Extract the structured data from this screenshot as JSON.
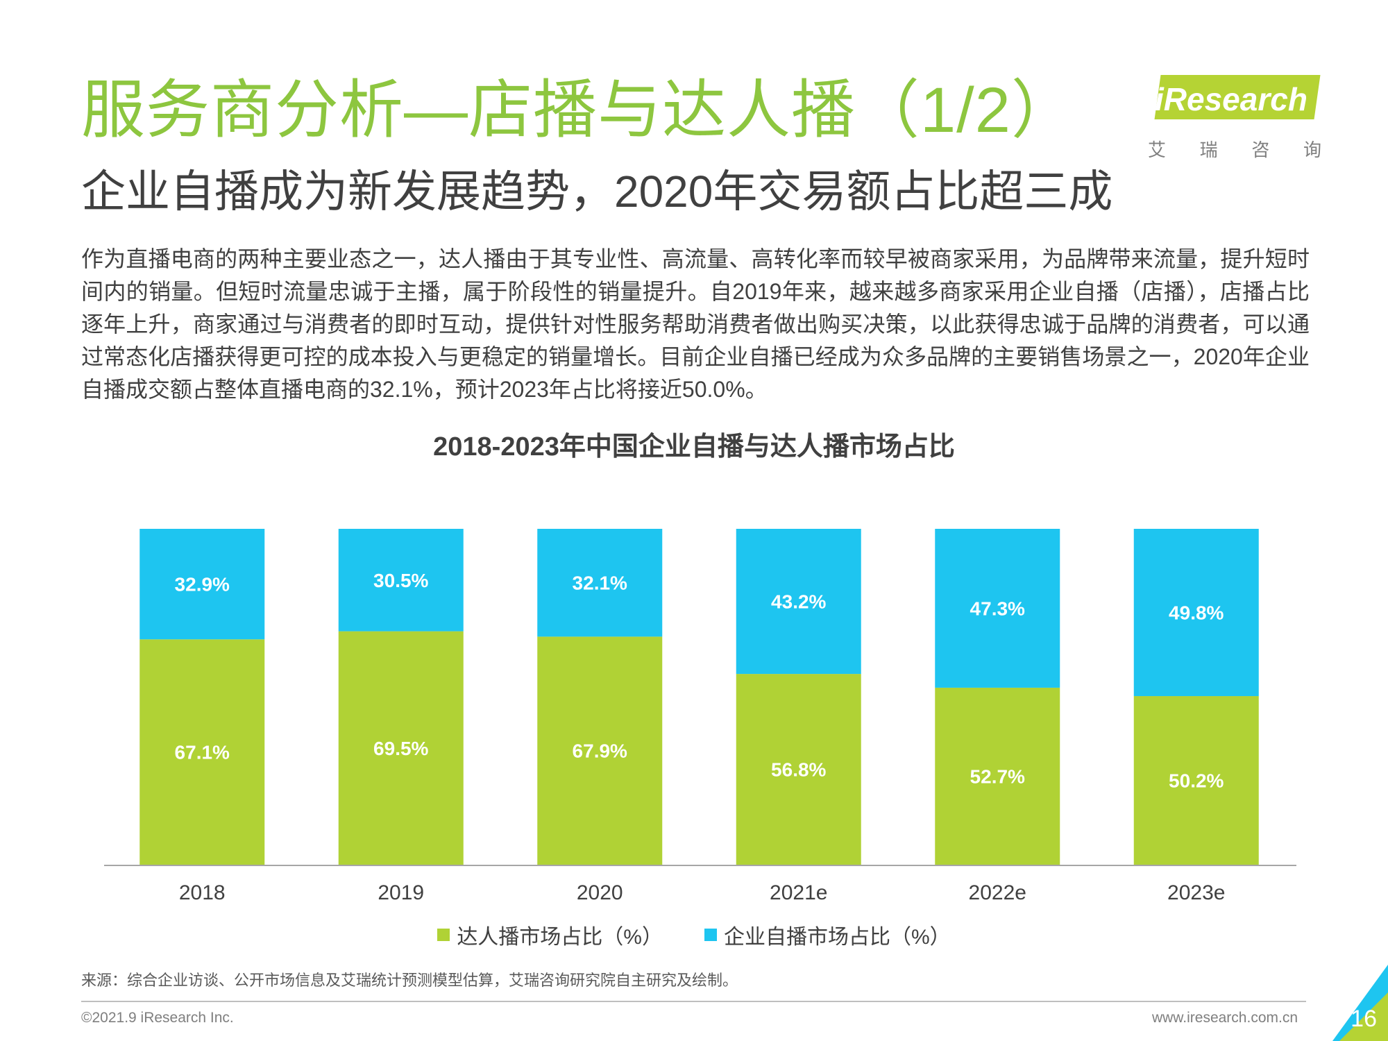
{
  "header": {
    "title": "服务商分析—店播与达人播（1/2）",
    "subtitle": "企业自播成为新发展趋势，2020年交易额占比超三成"
  },
  "logo": {
    "name": "iResearch",
    "subtitle_chars": [
      "艾",
      "瑞",
      "咨",
      "询"
    ]
  },
  "body": {
    "paragraph": "作为直播电商的两种主要业态之一，达人播由于其专业性、高流量、高转化率而较早被商家采用，为品牌带来流量，提升短时间内的销量。但短时流量忠诚于主播，属于阶段性的销量提升。自2019年来，越来越多商家采用企业自播（店播），店播占比逐年上升，商家通过与消费者的即时互动，提供针对性服务帮助消费者做出购买决策，以此获得忠诚于品牌的消费者，可以通过常态化店播获得更可控的成本投入与更稳定的销量增长。目前企业自播已经成为众多品牌的主要销售场景之一，2020年企业自播成交额占整体直播电商的32.1%，预计2023年占比将接近50.0%。"
  },
  "chart_data": {
    "type": "bar",
    "stacked": true,
    "title": "2018-2023年中国企业自播与达人播市场占比",
    "categories": [
      "2018",
      "2019",
      "2020",
      "2021e",
      "2022e",
      "2023e"
    ],
    "series": [
      {
        "name": "达人播市场占比（%）",
        "values": [
          67.1,
          69.5,
          67.9,
          56.8,
          52.7,
          50.2
        ],
        "labels": [
          "67.1%",
          "69.5%",
          "67.9%",
          "56.8%",
          "52.7%",
          "50.2%"
        ],
        "color": "#b0d235"
      },
      {
        "name": "企业自播市场占比（%）",
        "values": [
          32.9,
          30.5,
          32.1,
          43.2,
          47.3,
          49.8
        ],
        "labels": [
          "32.9%",
          "30.5%",
          "32.1%",
          "43.2%",
          "47.3%",
          "49.8%"
        ],
        "color": "#1ec5f0"
      }
    ],
    "ylim": [
      0,
      100
    ],
    "grid": false,
    "legend_position": "bottom"
  },
  "footer": {
    "source": "来源：综合企业访谈、公开市场信息及艾瑞统计预测模型估算，艾瑞咨询研究院自主研究及绘制。",
    "copyright": "©2021.9 iResearch Inc.",
    "website": "www.iresearch.com.cn",
    "page_number": "16"
  },
  "colors": {
    "title_green": "#8dc63f",
    "text": "#404040",
    "corner_green": "#b5d334",
    "corner_blue": "#1ec5f0"
  }
}
